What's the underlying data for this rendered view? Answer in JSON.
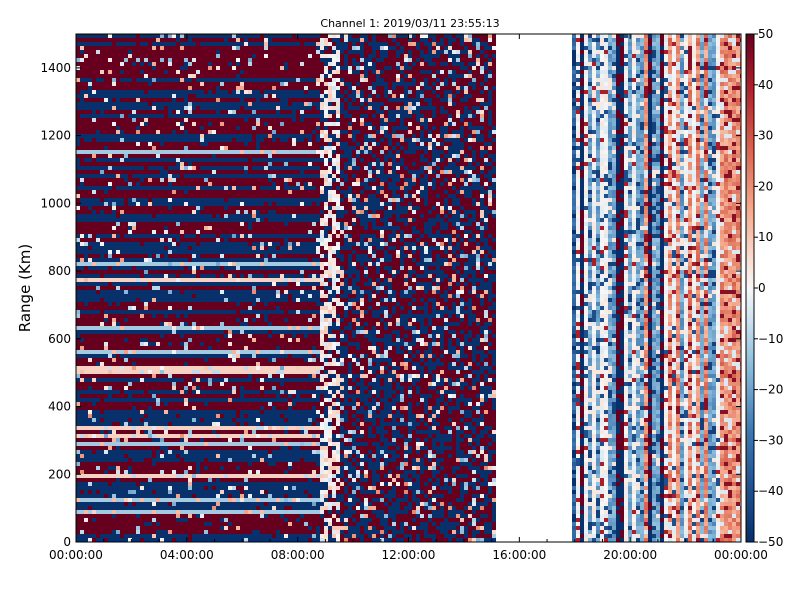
{
  "chart_data": {
    "type": "heatmap",
    "title": "Channel 1: 2019/03/11 23:55:13",
    "xlabel": "",
    "ylabel": "Range (Km)",
    "x_tick_labels": [
      "00:00:00",
      "04:00:00",
      "08:00:00",
      "12:00:00",
      "16:00:00",
      "20:00:00",
      "00:00:00"
    ],
    "x_range_hours": [
      0,
      24
    ],
    "y_ticks": [
      0,
      200,
      400,
      600,
      800,
      1000,
      1200,
      1400
    ],
    "y_range_km": [
      0,
      1500
    ],
    "colorbar": {
      "range": [
        -50,
        50
      ],
      "ticks": [
        50,
        40,
        30,
        20,
        10,
        0,
        -10,
        -20,
        -30,
        -40,
        -50
      ],
      "colormap": "RdBu_r",
      "low_color": "#08306b",
      "mid_color": "#f7f7f7",
      "high_color": "#67001f"
    },
    "data_regions": [
      {
        "name": "region-0-9h",
        "x_hours": [
          0,
          9
        ],
        "pattern": "horizontal-bands, mostly saturated +50 and -50"
      },
      {
        "name": "region-9-9.5h",
        "x_hours": [
          8.8,
          9.6
        ],
        "pattern": "near-zero light band"
      },
      {
        "name": "region-9.5-15.2h",
        "x_hours": [
          9.6,
          15.2
        ],
        "pattern": "random speckle, mostly saturated +50 and -50"
      },
      {
        "name": "region-no-data",
        "x_hours": [
          15.2,
          17.9
        ],
        "pattern": "no data (blank)"
      },
      {
        "name": "region-17.9-24h",
        "x_hours": [
          17.9,
          24
        ],
        "pattern": "vertical stripes, moderate values, light blue and light red"
      }
    ]
  }
}
